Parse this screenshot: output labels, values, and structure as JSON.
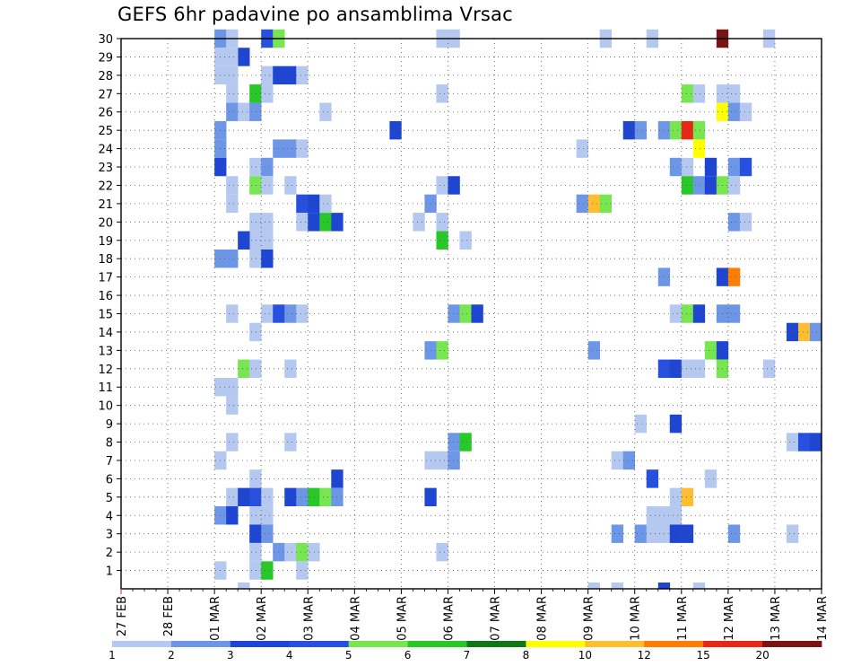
{
  "chart_data": {
    "type": "heatmap",
    "title": "GEFS 6hr padavine po ansamblima Vrsac",
    "x_tick_labels": [
      "27 FEB",
      "28 FEB",
      "01 MAR",
      "02 MAR",
      "03 MAR",
      "04 MAR",
      "05 MAR",
      "06 MAR",
      "07 MAR",
      "08 MAR",
      "09 MAR",
      "10 MAR",
      "11 MAR",
      "12 MAR",
      "13 MAR",
      "14 MAR"
    ],
    "y_tick_labels": [
      "1",
      "2",
      "3",
      "4",
      "5",
      "6",
      "7",
      "8",
      "9",
      "10",
      "11",
      "12",
      "13",
      "14",
      "15",
      "16",
      "17",
      "18",
      "19",
      "20",
      "21",
      "22",
      "23",
      "24",
      "25",
      "26",
      "27",
      "28",
      "29",
      "30"
    ],
    "x_unit": "6h steps from 27 FEB 00Z",
    "ylim": [
      0,
      30
    ],
    "grid": true,
    "legend_position": "bottom",
    "legend_labels": [
      "1",
      "2",
      "3",
      "4",
      "5",
      "6",
      "7",
      "8",
      "10",
      "12",
      "15",
      "20"
    ],
    "legend_colors": [
      "#b4c8f0",
      "#6e96e6",
      "#1e46d2",
      "#2850e0",
      "#78e650",
      "#28c828",
      "#0f7814",
      "#ffff00",
      "#ffbe32",
      "#ff7d00",
      "#e62814",
      "#781414"
    ],
    "cells": [
      [
        8,
        30,
        2
      ],
      [
        9,
        30,
        1
      ],
      [
        12,
        30,
        4
      ],
      [
        13,
        30,
        5
      ],
      [
        27,
        30,
        1
      ],
      [
        28,
        30,
        1
      ],
      [
        41,
        30,
        1
      ],
      [
        45,
        30,
        1
      ],
      [
        51,
        30,
        20
      ],
      [
        55,
        30,
        1
      ],
      [
        10,
        29,
        3
      ],
      [
        8,
        29,
        1
      ],
      [
        9,
        29,
        1
      ],
      [
        8,
        28,
        1
      ],
      [
        9,
        28,
        1
      ],
      [
        12,
        28,
        1
      ],
      [
        13,
        28,
        3
      ],
      [
        14,
        28,
        3
      ],
      [
        15,
        28,
        1
      ],
      [
        9,
        27,
        1
      ],
      [
        11,
        27,
        6
      ],
      [
        12,
        27,
        1
      ],
      [
        27,
        27,
        1
      ],
      [
        48,
        27,
        5
      ],
      [
        49,
        27,
        1
      ],
      [
        51,
        27,
        1
      ],
      [
        52,
        27,
        1
      ],
      [
        9,
        26,
        2
      ],
      [
        10,
        26,
        1
      ],
      [
        11,
        26,
        2
      ],
      [
        17,
        26,
        1
      ],
      [
        51,
        26,
        8
      ],
      [
        52,
        26,
        2
      ],
      [
        53,
        26,
        1
      ],
      [
        8,
        25,
        2
      ],
      [
        23,
        25,
        3
      ],
      [
        43,
        25,
        3
      ],
      [
        44,
        25,
        2
      ],
      [
        46,
        25,
        2
      ],
      [
        47,
        25,
        5
      ],
      [
        48,
        25,
        15
      ],
      [
        49,
        25,
        5
      ],
      [
        8,
        24,
        2
      ],
      [
        13,
        24,
        2
      ],
      [
        14,
        24,
        2
      ],
      [
        15,
        24,
        1
      ],
      [
        39,
        24,
        1
      ],
      [
        49,
        24,
        8
      ],
      [
        8,
        23,
        3
      ],
      [
        11,
        23,
        1
      ],
      [
        12,
        23,
        2
      ],
      [
        47,
        23,
        2
      ],
      [
        48,
        23,
        1
      ],
      [
        50,
        23,
        3
      ],
      [
        52,
        23,
        2
      ],
      [
        53,
        23,
        4
      ],
      [
        9,
        22,
        1
      ],
      [
        11,
        22,
        5
      ],
      [
        12,
        22,
        1
      ],
      [
        14,
        22,
        1
      ],
      [
        27,
        22,
        1
      ],
      [
        28,
        22,
        3
      ],
      [
        48,
        22,
        6
      ],
      [
        49,
        22,
        2
      ],
      [
        50,
        22,
        3
      ],
      [
        51,
        22,
        5
      ],
      [
        52,
        22,
        1
      ],
      [
        9,
        21,
        1
      ],
      [
        15,
        21,
        4
      ],
      [
        16,
        21,
        3
      ],
      [
        17,
        21,
        1
      ],
      [
        26,
        21,
        2
      ],
      [
        39,
        21,
        2
      ],
      [
        40,
        21,
        10
      ],
      [
        41,
        21,
        5
      ],
      [
        11,
        20,
        1
      ],
      [
        12,
        20,
        1
      ],
      [
        15,
        20,
        1
      ],
      [
        16,
        20,
        3
      ],
      [
        17,
        20,
        6
      ],
      [
        18,
        20,
        3
      ],
      [
        25,
        20,
        1
      ],
      [
        27,
        20,
        1
      ],
      [
        52,
        20,
        2
      ],
      [
        53,
        20,
        1
      ],
      [
        11,
        19,
        1
      ],
      [
        12,
        19,
        1
      ],
      [
        10,
        19,
        3
      ],
      [
        27,
        19,
        6
      ],
      [
        29,
        19,
        1
      ],
      [
        8,
        18,
        2
      ],
      [
        9,
        18,
        2
      ],
      [
        11,
        18,
        1
      ],
      [
        12,
        18,
        3
      ],
      [
        46,
        17,
        2
      ],
      [
        51,
        17,
        3
      ],
      [
        52,
        17,
        12
      ],
      [
        9,
        15,
        1
      ],
      [
        12,
        15,
        1
      ],
      [
        13,
        15,
        4
      ],
      [
        14,
        15,
        2
      ],
      [
        15,
        15,
        1
      ],
      [
        28,
        15,
        2
      ],
      [
        29,
        15,
        5
      ],
      [
        30,
        15,
        3
      ],
      [
        47,
        15,
        1
      ],
      [
        48,
        15,
        5
      ],
      [
        49,
        15,
        3
      ],
      [
        51,
        15,
        2
      ],
      [
        52,
        15,
        2
      ],
      [
        11,
        14,
        1
      ],
      [
        57,
        14,
        3
      ],
      [
        58,
        14,
        10
      ],
      [
        59,
        14,
        2
      ],
      [
        26,
        13,
        2
      ],
      [
        27,
        13,
        5
      ],
      [
        40,
        13,
        2
      ],
      [
        50,
        13,
        5
      ],
      [
        51,
        13,
        3
      ],
      [
        10,
        12,
        5
      ],
      [
        11,
        12,
        1
      ],
      [
        14,
        12,
        1
      ],
      [
        46,
        12,
        4
      ],
      [
        47,
        12,
        3
      ],
      [
        48,
        12,
        1
      ],
      [
        49,
        12,
        1
      ],
      [
        51,
        12,
        5
      ],
      [
        55,
        12,
        1
      ],
      [
        8,
        11,
        1
      ],
      [
        9,
        11,
        1
      ],
      [
        9,
        10,
        1
      ],
      [
        44,
        9,
        1
      ],
      [
        47,
        9,
        3
      ],
      [
        9,
        8,
        1
      ],
      [
        14,
        8,
        1
      ],
      [
        28,
        8,
        2
      ],
      [
        29,
        8,
        6
      ],
      [
        57,
        8,
        1
      ],
      [
        58,
        8,
        4
      ],
      [
        59,
        8,
        3
      ],
      [
        8,
        7,
        1
      ],
      [
        26,
        7,
        1
      ],
      [
        27,
        7,
        1
      ],
      [
        28,
        7,
        2
      ],
      [
        42,
        7,
        1
      ],
      [
        43,
        7,
        2
      ],
      [
        11,
        6,
        1
      ],
      [
        18,
        6,
        3
      ],
      [
        45,
        6,
        4
      ],
      [
        50,
        6,
        1
      ],
      [
        9,
        5,
        1
      ],
      [
        10,
        5,
        3
      ],
      [
        11,
        5,
        4
      ],
      [
        12,
        5,
        1
      ],
      [
        14,
        5,
        3
      ],
      [
        15,
        5,
        2
      ],
      [
        16,
        5,
        6
      ],
      [
        17,
        5,
        5
      ],
      [
        18,
        5,
        2
      ],
      [
        26,
        5,
        3
      ],
      [
        47,
        5,
        1
      ],
      [
        48,
        5,
        10
      ],
      [
        8,
        4,
        2
      ],
      [
        9,
        4,
        3
      ],
      [
        11,
        4,
        1
      ],
      [
        12,
        4,
        1
      ],
      [
        45,
        4,
        1
      ],
      [
        46,
        4,
        1
      ],
      [
        47,
        4,
        1
      ],
      [
        11,
        3,
        3
      ],
      [
        12,
        3,
        2
      ],
      [
        42,
        3,
        2
      ],
      [
        44,
        3,
        2
      ],
      [
        45,
        3,
        1
      ],
      [
        46,
        3,
        1
      ],
      [
        47,
        3,
        3
      ],
      [
        48,
        3,
        3
      ],
      [
        52,
        3,
        2
      ],
      [
        57,
        3,
        1
      ],
      [
        11,
        2,
        1
      ],
      [
        13,
        2,
        2
      ],
      [
        14,
        2,
        1
      ],
      [
        15,
        2,
        5
      ],
      [
        16,
        2,
        1
      ],
      [
        27,
        2,
        1
      ],
      [
        8,
        1,
        1
      ],
      [
        11,
        1,
        1
      ],
      [
        12,
        1,
        6
      ],
      [
        15,
        1,
        1
      ],
      [
        10,
        0,
        1
      ],
      [
        40,
        0,
        1
      ],
      [
        42,
        0,
        1
      ],
      [
        46,
        0,
        3
      ],
      [
        49,
        0,
        1
      ]
    ]
  }
}
